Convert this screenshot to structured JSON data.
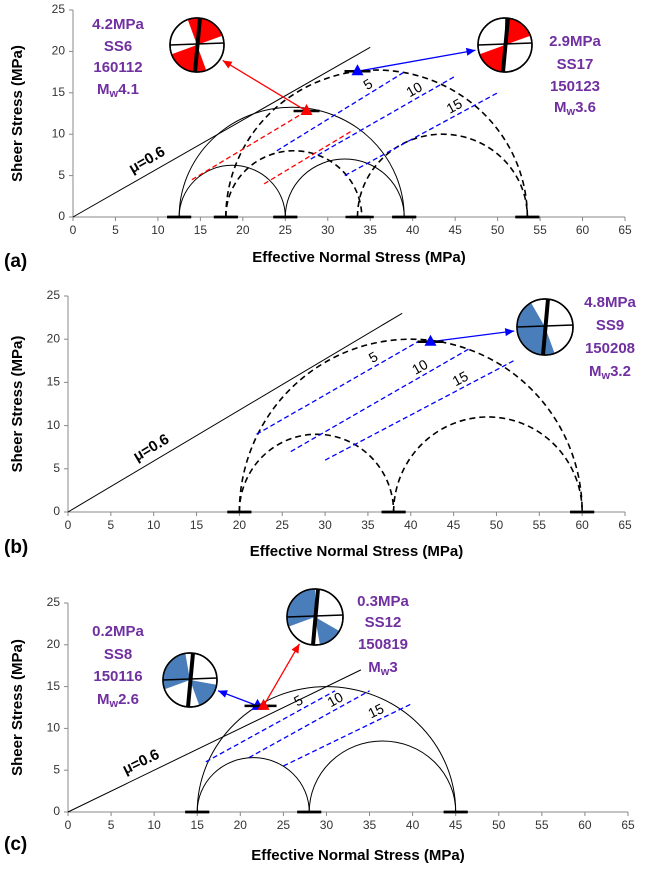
{
  "chart_data": [
    {
      "type": "mohr",
      "panel": "(a)",
      "xlabel": "Effective Normal Stress (MPa)",
      "ylabel": "Sheer Stress (MPa)",
      "xlim": [
        0,
        65
      ],
      "ylim": [
        0,
        25
      ],
      "xticks": [
        0,
        5,
        10,
        15,
        20,
        25,
        30,
        35,
        40,
        45,
        50,
        55,
        60,
        65
      ],
      "yticks": [
        0,
        5,
        10,
        15,
        20,
        25
      ],
      "friction_label": "μ=0.6",
      "friction_line": {
        "x": [
          0,
          35
        ],
        "y": [
          0,
          20.5
        ]
      },
      "circles": [
        {
          "x": [
            12.5,
            39
          ],
          "dashed": false
        },
        {
          "x": [
            12.5,
            25
          ],
          "dashed": false
        },
        {
          "x": [
            25,
            39
          ],
          "dashed": false
        },
        {
          "x": [
            18,
            53.5
          ],
          "dashed": true
        },
        {
          "x": [
            18,
            34
          ],
          "dashed": true
        },
        {
          "x": [
            33.5,
            53.5
          ],
          "dashed": true
        }
      ],
      "shift_lines": [
        {
          "x": [
            14,
            27.5
          ],
          "y": [
            4.5,
            12.8
          ],
          "color": "#ff0000"
        },
        {
          "x": [
            22.5,
            33
          ],
          "y": [
            4,
            10.5
          ],
          "color": "#ff0000"
        },
        {
          "label": 5,
          "x": [
            24,
            39
          ],
          "y": [
            8,
            17.5
          ],
          "color": "#0000ff"
        },
        {
          "label": 10,
          "x": [
            28,
            45
          ],
          "y": [
            7,
            17
          ],
          "color": "#0000ff"
        },
        {
          "label": 15,
          "x": [
            32,
            50
          ],
          "y": [
            5,
            15
          ],
          "color": "#0000ff"
        }
      ],
      "events": [
        {
          "x": 27.5,
          "y": 12.8,
          "color": "#ff0000",
          "ball_color": "#ff0000",
          "pressure": "4.2MPa",
          "name": "SS6",
          "date": "160112",
          "mag_symbol": "M",
          "mag_sub": "w",
          "magnitude": 4.1
        },
        {
          "x": 33.5,
          "y": 17.6,
          "color": "#0000ff",
          "ball_color": "#ff0000",
          "pressure": "2.9MPa",
          "name": "SS17",
          "date": "150123",
          "mag_symbol": "M",
          "mag_sub": "w",
          "magnitude": 3.6
        }
      ]
    },
    {
      "type": "mohr",
      "panel": "(b)",
      "xlabel": "Effective Normal Stress (MPa)",
      "ylabel": "Sheer Stress (MPa)",
      "xlim": [
        0,
        65
      ],
      "ylim": [
        0,
        25
      ],
      "xticks": [
        0,
        5,
        10,
        15,
        20,
        25,
        30,
        35,
        40,
        45,
        50,
        55,
        60,
        65
      ],
      "yticks": [
        0,
        5,
        10,
        15,
        20,
        25
      ],
      "friction_label": "μ=0.6",
      "friction_line": {
        "x": [
          0,
          39
        ],
        "y": [
          0,
          23
        ]
      },
      "circles": [
        {
          "x": [
            20,
            60
          ],
          "dashed": true
        },
        {
          "x": [
            20,
            38
          ],
          "dashed": true
        },
        {
          "x": [
            38,
            60
          ],
          "dashed": true
        }
      ],
      "shift_lines": [
        {
          "label": 5,
          "x": [
            22,
            41
          ],
          "y": [
            9,
            19.8
          ],
          "color": "#0000ff"
        },
        {
          "label": 10,
          "x": [
            26,
            47
          ],
          "y": [
            7,
            19
          ],
          "color": "#0000ff"
        },
        {
          "label": 15,
          "x": [
            30,
            52
          ],
          "y": [
            6,
            17.5
          ],
          "color": "#0000ff"
        }
      ],
      "events": [
        {
          "x": 42.3,
          "y": 19.7,
          "color": "#0000ff",
          "ball_color": "#4a7ebb",
          "pressure": "4.8MPa",
          "name": "SS9",
          "date": "150208",
          "mag_symbol": "M",
          "mag_sub": "w",
          "magnitude": 3.2
        }
      ]
    },
    {
      "type": "mohr",
      "panel": "(c)",
      "xlabel": "Effective Normal Stress (MPa)",
      "ylabel": "Sheer Stress (MPa)",
      "xlim": [
        0,
        65
      ],
      "ylim": [
        0,
        25
      ],
      "xticks": [
        0,
        5,
        10,
        15,
        20,
        25,
        30,
        35,
        40,
        45,
        50,
        55,
        60,
        65
      ],
      "yticks": [
        0,
        5,
        10,
        15,
        20,
        25
      ],
      "friction_label": "μ=0.6",
      "friction_line": {
        "x": [
          0,
          34
        ],
        "y": [
          0,
          17
        ]
      },
      "circles": [
        {
          "x": [
            15,
            45
          ],
          "dashed": false
        },
        {
          "x": [
            15,
            28
          ],
          "dashed": false
        },
        {
          "x": [
            28,
            45
          ],
          "dashed": false
        }
      ],
      "shift_lines": [
        {
          "label": 5,
          "x": [
            16,
            31
          ],
          "y": [
            6,
            14.5
          ],
          "color": "#0000ff"
        },
        {
          "label": 10,
          "x": [
            21,
            35
          ],
          "y": [
            6.5,
            14.5
          ],
          "color": "#0000ff"
        },
        {
          "label": 15,
          "x": [
            25,
            40
          ],
          "y": [
            5.5,
            13
          ],
          "color": "#0000ff"
        }
      ],
      "events": [
        {
          "x": 22,
          "y": 12.7,
          "color": "#0000ff",
          "ball_color": "#4a7ebb",
          "pressure": "0.2MPa",
          "name": "SS8",
          "date": "150116",
          "mag_symbol": "M",
          "mag_sub": "w",
          "magnitude": 2.6
        },
        {
          "x": 22.7,
          "y": 12.7,
          "color": "#ff0000",
          "ball_color": "#4a7ebb",
          "pressure": "0.3MPa",
          "name": "SS12",
          "date": "150819",
          "mag_symbol": "M",
          "mag_sub": "w",
          "magnitude": 3.0
        }
      ]
    }
  ]
}
